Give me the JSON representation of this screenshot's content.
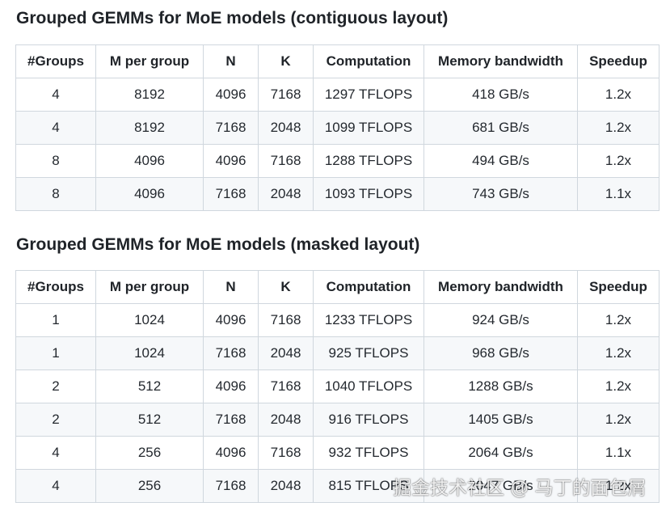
{
  "sections": [
    {
      "title": "Grouped GEMMs for MoE models (contiguous layout)",
      "headers": [
        "#Groups",
        "M per group",
        "N",
        "K",
        "Computation",
        "Memory bandwidth",
        "Speedup"
      ],
      "rows": [
        [
          "4",
          "8192",
          "4096",
          "7168",
          "1297 TFLOPS",
          "418 GB/s",
          "1.2x"
        ],
        [
          "4",
          "8192",
          "7168",
          "2048",
          "1099 TFLOPS",
          "681 GB/s",
          "1.2x"
        ],
        [
          "8",
          "4096",
          "4096",
          "7168",
          "1288 TFLOPS",
          "494 GB/s",
          "1.2x"
        ],
        [
          "8",
          "4096",
          "7168",
          "2048",
          "1093 TFLOPS",
          "743 GB/s",
          "1.1x"
        ]
      ]
    },
    {
      "title": "Grouped GEMMs for MoE models (masked layout)",
      "headers": [
        "#Groups",
        "M per group",
        "N",
        "K",
        "Computation",
        "Memory bandwidth",
        "Speedup"
      ],
      "rows": [
        [
          "1",
          "1024",
          "4096",
          "7168",
          "1233 TFLOPS",
          "924 GB/s",
          "1.2x"
        ],
        [
          "1",
          "1024",
          "7168",
          "2048",
          "925 TFLOPS",
          "968 GB/s",
          "1.2x"
        ],
        [
          "2",
          "512",
          "4096",
          "7168",
          "1040 TFLOPS",
          "1288 GB/s",
          "1.2x"
        ],
        [
          "2",
          "512",
          "7168",
          "2048",
          "916 TFLOPS",
          "1405 GB/s",
          "1.2x"
        ],
        [
          "4",
          "256",
          "4096",
          "7168",
          "932 TFLOPS",
          "2064 GB/s",
          "1.1x"
        ],
        [
          "4",
          "256",
          "7168",
          "2048",
          "815 TFLOPS",
          "2047 GB/s",
          "1.2x"
        ]
      ]
    }
  ],
  "watermark": "掘金技术社区 @ 马丁的面包屑"
}
